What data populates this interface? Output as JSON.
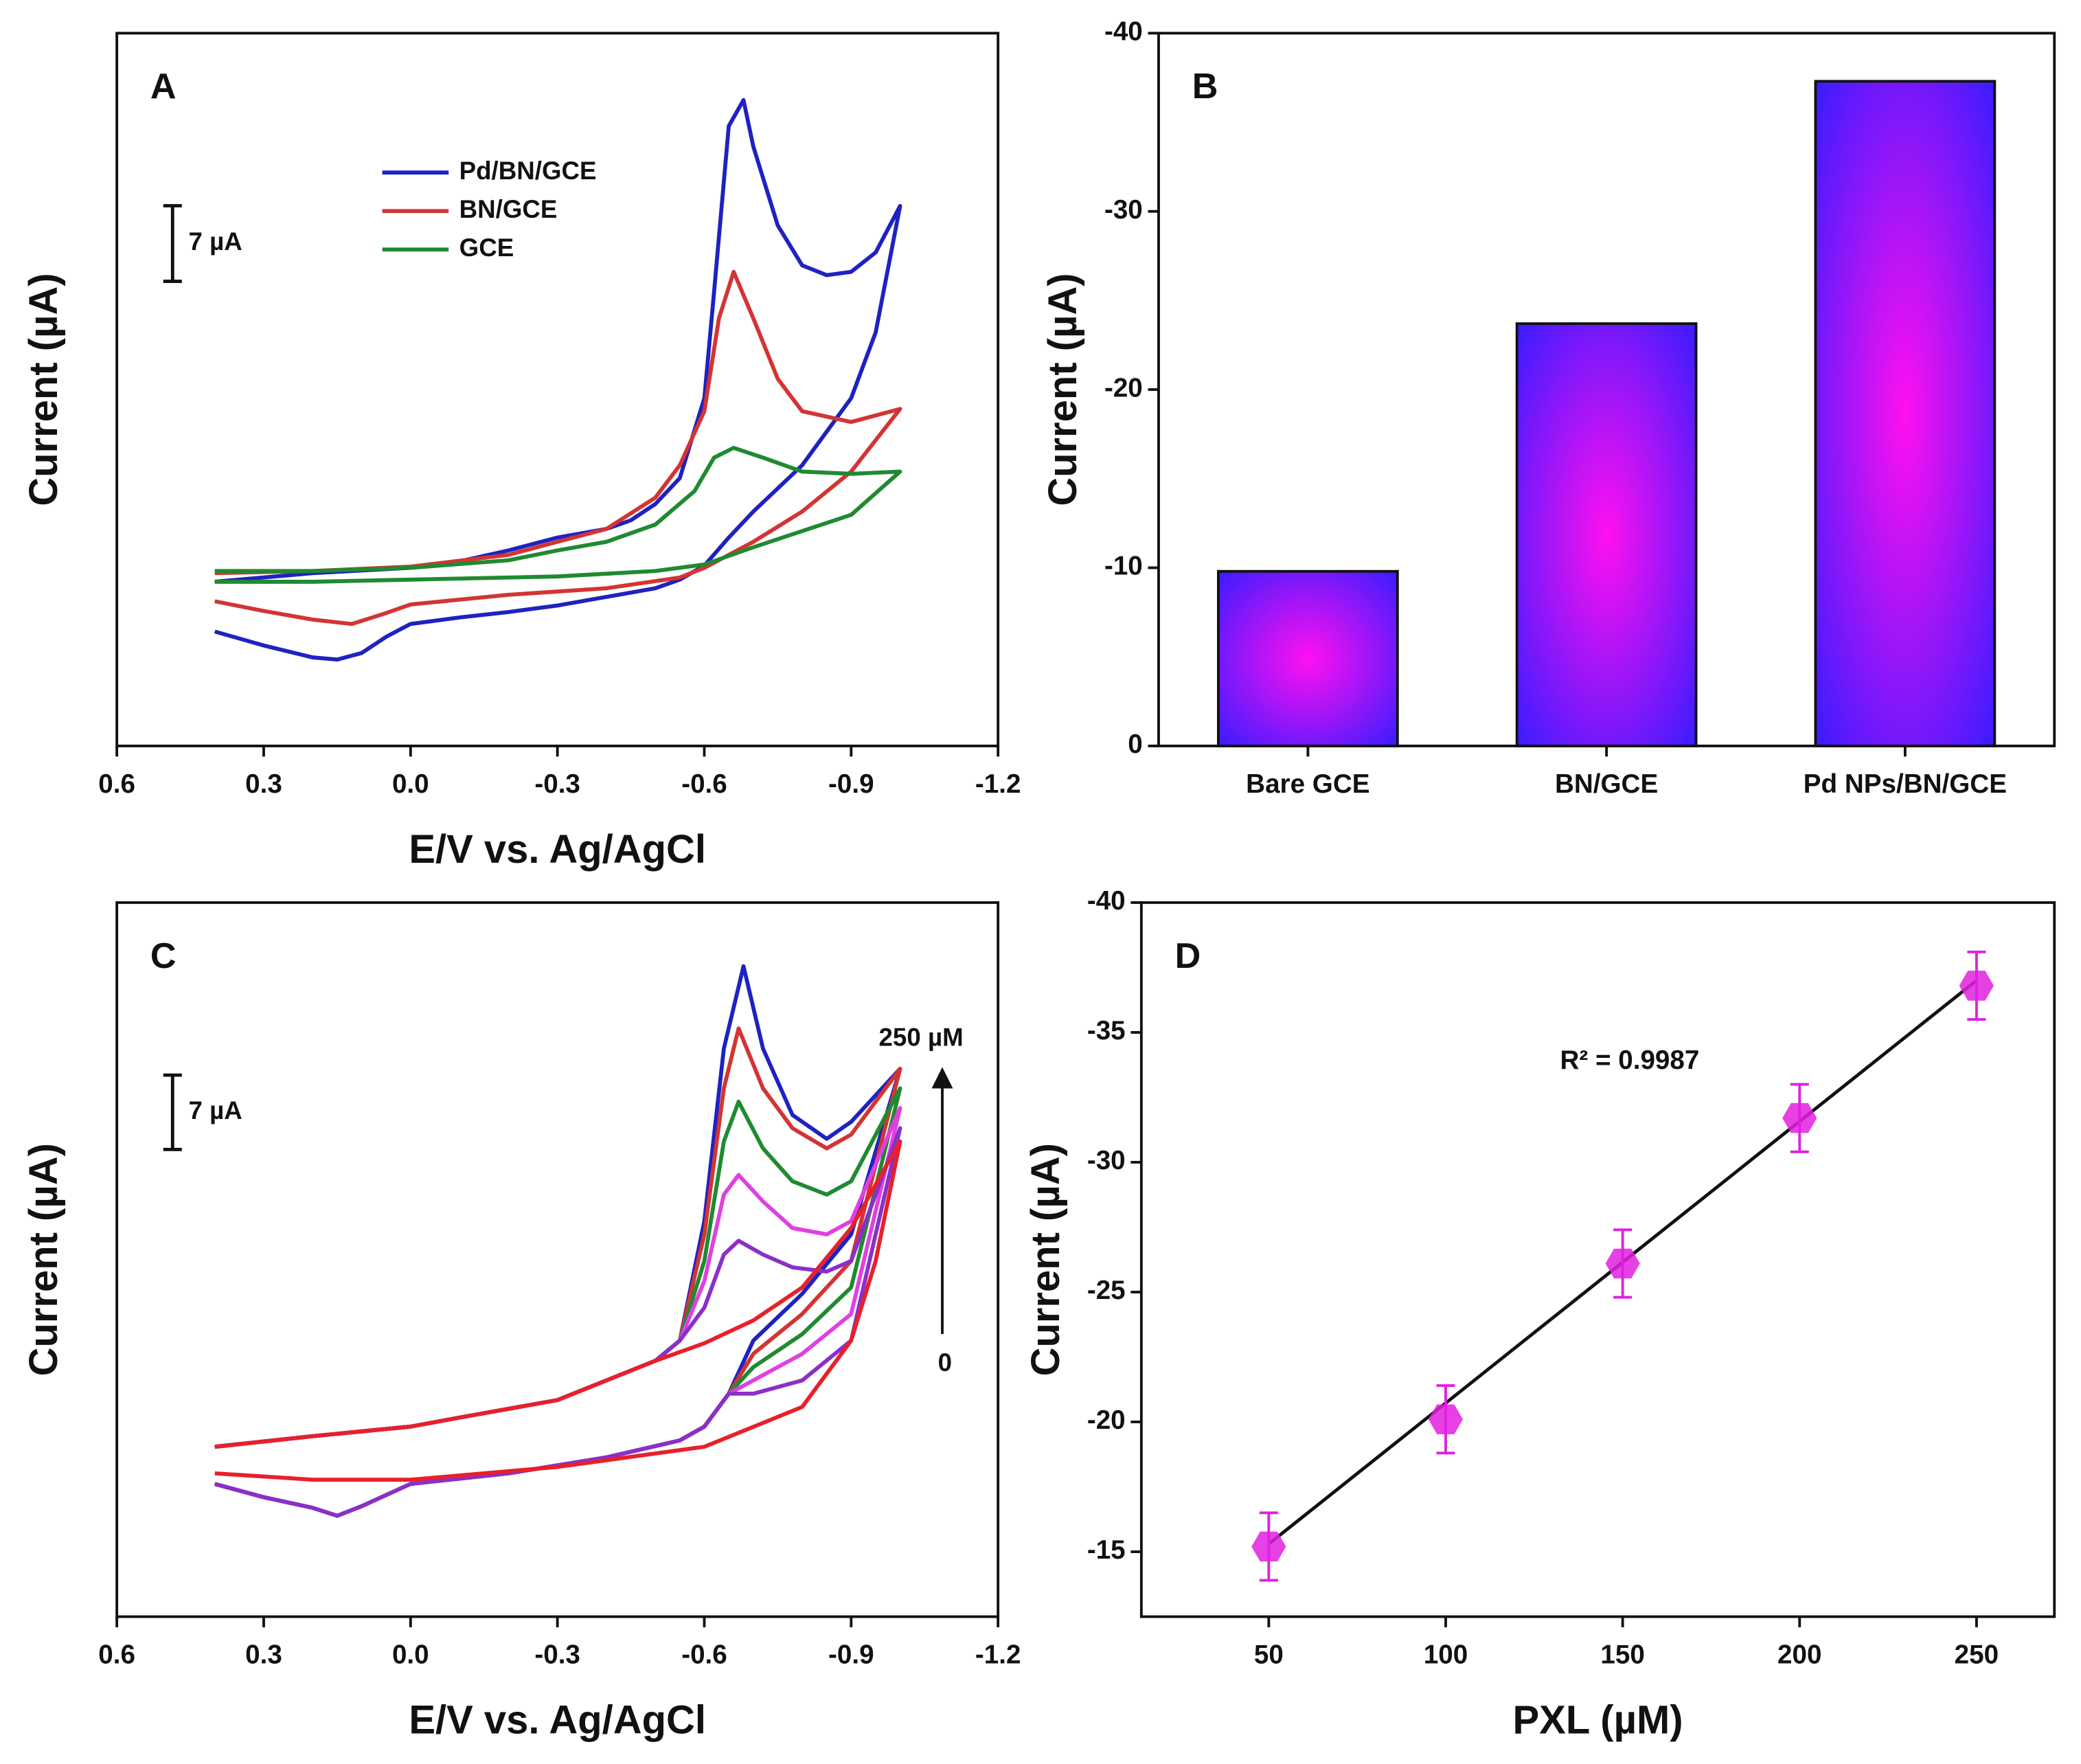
{
  "chart_data": [
    {
      "type": "line",
      "panel": "A",
      "x_label": "E/V vs. Ag/AgCl",
      "y_label": "Current (µA)",
      "xlim": [
        0.6,
        -1.2
      ],
      "xticks": [
        0.6,
        0.3,
        {
          "value": 0,
          "label": "0.0"
        },
        -0.3,
        -0.6,
        -0.9,
        -1.2
      ],
      "ylim": [
        0,
        66
      ],
      "scale_bar": {
        "value": 7,
        "label": "7 µA"
      },
      "series": [
        {
          "name": "Pd/BN/GCE",
          "color": "#1f22c0",
          "x": [
            0.4,
            0.3,
            0.2,
            0.15,
            0.1,
            0.05,
            0,
            -0.1,
            -0.2,
            -0.3,
            -0.4,
            -0.5,
            -0.55,
            -0.6,
            -0.65,
            -0.7,
            -0.8,
            -0.9,
            -0.95,
            -1.0,
            -0.95,
            -0.9,
            -0.85,
            -0.8,
            -0.75,
            -0.7,
            -0.68,
            -0.65,
            -0.62,
            -0.6,
            -0.55,
            -0.5,
            -0.45,
            -0.4,
            -0.3,
            -0.2,
            -0.1,
            0,
            0.2,
            0.4
          ],
          "values": [
            10.6,
            9.3,
            8.2,
            8.0,
            8.6,
            10.1,
            11.3,
            11.9,
            12.4,
            13.0,
            13.8,
            14.6,
            15.4,
            16.7,
            19.3,
            21.7,
            26.0,
            32.2,
            38.3,
            50.0,
            45.7,
            43.9,
            43.6,
            44.5,
            48.2,
            55.5,
            59.8,
            57.4,
            42.0,
            32.2,
            24.8,
            22.4,
            20.9,
            20.1,
            19.3,
            18.1,
            17.1,
            16.5,
            16.0,
            15.2
          ]
        },
        {
          "name": "BN/GCE",
          "color": "#d33434",
          "x": [
            0.4,
            0.3,
            0.2,
            0.12,
            0.05,
            0,
            -0.2,
            -0.4,
            -0.55,
            -0.6,
            -0.7,
            -0.8,
            -0.9,
            -1.0,
            -0.95,
            -0.9,
            -0.8,
            -0.75,
            -0.7,
            -0.66,
            -0.63,
            -0.6,
            -0.55,
            -0.5,
            -0.4,
            -0.3,
            -0.2,
            0,
            0.2,
            0.4
          ],
          "values": [
            13.4,
            12.5,
            11.7,
            11.3,
            12.3,
            13.1,
            14.0,
            14.6,
            15.6,
            16.5,
            18.9,
            21.7,
            25.4,
            31.2,
            30.6,
            30.0,
            31.0,
            34.0,
            39.6,
            43.9,
            39.6,
            31.0,
            26.0,
            23.0,
            20.1,
            18.9,
            17.7,
            16.6,
            16.2,
            16.0
          ]
        },
        {
          "name": "GCE",
          "color": "#1f8a30",
          "x": [
            0.4,
            0.2,
            0,
            -0.3,
            -0.5,
            -0.6,
            -0.7,
            -0.8,
            -0.9,
            -1.0,
            -0.9,
            -0.8,
            -0.72,
            -0.66,
            -0.62,
            -0.58,
            -0.5,
            -0.4,
            -0.3,
            -0.2,
            0,
            0.2,
            0.4
          ],
          "values": [
            15.2,
            15.2,
            15.4,
            15.7,
            16.2,
            16.8,
            18.4,
            19.9,
            21.4,
            25.4,
            25.2,
            25.4,
            26.7,
            27.6,
            26.7,
            23.6,
            20.5,
            18.9,
            18.1,
            17.2,
            16.5,
            16.2,
            16.2
          ]
        }
      ]
    },
    {
      "type": "bar",
      "panel": "B",
      "y_label": "Current (µA)",
      "categories": [
        "Bare GCE",
        "BN/GCE",
        "Pd NPs/BN/GCE"
      ],
      "values": [
        -9.8,
        -23.7,
        -37.3
      ],
      "ylim": [
        0,
        -40
      ],
      "yticks": [
        0,
        -10,
        -20,
        -30,
        -40
      ]
    },
    {
      "type": "line",
      "panel": "C",
      "x_label": "E/V vs. Ag/AgCl",
      "y_label": "Current (µA)",
      "xlim": [
        0.6,
        -1.2
      ],
      "xticks": [
        0.6,
        0.3,
        {
          "value": 0,
          "label": "0.0"
        },
        -0.3,
        -0.6,
        -0.9,
        -1.2
      ],
      "ylim": [
        0,
        67.25
      ],
      "scale_bar": {
        "value": 7,
        "label": "7 µA"
      },
      "annotations": [
        "250 µM",
        "0"
      ],
      "series": [
        {
          "color": "#1f22c0",
          "x": [
            0.4,
            0.3,
            0.2,
            0.15,
            0.1,
            0,
            -0.2,
            -0.4,
            -0.55,
            -0.6,
            -0.65,
            -0.7,
            -0.8,
            -0.9,
            -1.0,
            -0.9,
            -0.85,
            -0.78,
            -0.72,
            -0.68,
            -0.64,
            -0.6,
            -0.55,
            -0.5,
            -0.4,
            -0.3,
            -0.1,
            0,
            0.2,
            0.4
          ],
          "values": [
            12.5,
            11.25,
            10.25,
            9.5,
            10.4,
            12.5,
            13.5,
            15,
            16.6,
            17.9,
            21,
            26,
            30.4,
            36,
            51.6,
            46.6,
            45,
            47.25,
            53.5,
            61.25,
            53.5,
            37.25,
            26,
            24.1,
            22.25,
            20.4,
            18.75,
            17.9,
            17,
            16
          ]
        },
        {
          "color": "#d33434",
          "x": [
            0.4,
            0.3,
            0.2,
            0.15,
            0.1,
            0,
            -0.2,
            -0.4,
            -0.55,
            -0.6,
            -0.65,
            -0.7,
            -0.8,
            -0.9,
            -1.0,
            -0.9,
            -0.85,
            -0.78,
            -0.72,
            -0.67,
            -0.64,
            -0.6,
            -0.55,
            -0.5,
            -0.4,
            -0.3,
            -0.1,
            0,
            0.2,
            0.4
          ],
          "values": [
            12.5,
            11.25,
            10.25,
            9.5,
            10.4,
            12.5,
            13.5,
            15,
            16.6,
            17.9,
            21,
            24.75,
            28.5,
            33.5,
            51.6,
            45.4,
            44.1,
            46,
            49.75,
            55.4,
            49.75,
            36,
            26,
            24.1,
            22.25,
            20.4,
            18.75,
            17.9,
            17,
            16
          ]
        },
        {
          "color": "#1f8a30",
          "x": [
            0.4,
            0.3,
            0.2,
            0.15,
            0.1,
            0,
            -0.2,
            -0.4,
            -0.55,
            -0.6,
            -0.65,
            -0.7,
            -0.8,
            -0.9,
            -1.0,
            -0.9,
            -0.85,
            -0.78,
            -0.72,
            -0.67,
            -0.64,
            -0.6,
            -0.55,
            -0.5,
            -0.4,
            -0.3,
            -0.1,
            0,
            0.2,
            0.4
          ],
          "values": [
            12.5,
            11.25,
            10.25,
            9.5,
            10.4,
            12.5,
            13.5,
            15,
            16.6,
            17.9,
            21,
            23.5,
            26.6,
            31,
            49.75,
            41,
            39.75,
            41,
            44.1,
            48.5,
            44.75,
            33.5,
            26,
            24.1,
            22.25,
            20.4,
            18.75,
            17.9,
            17,
            16
          ]
        },
        {
          "color": "#e040e0",
          "x": [
            0.4,
            0.3,
            0.2,
            0.15,
            0.1,
            0,
            -0.2,
            -0.4,
            -0.55,
            -0.6,
            -0.65,
            -0.7,
            -0.8,
            -0.9,
            -1.0,
            -0.9,
            -0.85,
            -0.78,
            -0.72,
            -0.67,
            -0.64,
            -0.6,
            -0.55,
            -0.5,
            -0.4,
            -0.3,
            -0.1,
            0,
            0.2,
            0.4
          ],
          "values": [
            12.5,
            11.25,
            10.25,
            9.5,
            10.4,
            12.5,
            13.5,
            15,
            16.6,
            17.9,
            21,
            22.25,
            24.75,
            28.5,
            47.9,
            37.25,
            36,
            36.6,
            39.1,
            41.6,
            39.75,
            31.6,
            26,
            24.1,
            22.25,
            20.4,
            18.75,
            17.9,
            17,
            16
          ]
        },
        {
          "color": "#8a30c8",
          "x": [
            0.4,
            0.3,
            0.2,
            0.15,
            0.1,
            0,
            -0.2,
            -0.4,
            -0.55,
            -0.6,
            -0.65,
            -0.7,
            -0.8,
            -0.9,
            -1.0,
            -0.9,
            -0.85,
            -0.78,
            -0.72,
            -0.67,
            -0.64,
            -0.6,
            -0.55,
            -0.5,
            -0.4,
            -0.3,
            -0.1,
            0,
            0.2,
            0.4
          ],
          "values": [
            12.5,
            11.25,
            10.25,
            9.5,
            10.4,
            12.5,
            13.5,
            15,
            16.6,
            17.9,
            21,
            21,
            22.25,
            26,
            46,
            33.5,
            32.5,
            32.9,
            34.1,
            35.4,
            34.1,
            29.1,
            26,
            24.1,
            22.25,
            20.4,
            18.75,
            17.9,
            17,
            16
          ]
        },
        {
          "color": "#e8202a",
          "x": [
            0.4,
            0.2,
            0,
            -0.3,
            -0.6,
            -0.8,
            -0.9,
            -0.95,
            -1.0,
            -0.9,
            -0.8,
            -0.7,
            -0.6,
            -0.5,
            -0.4,
            -0.3,
            -0.1,
            0,
            0.2,
            0.4
          ],
          "values": [
            13.5,
            12.9,
            12.9,
            14.1,
            16,
            19.75,
            26,
            33.5,
            44.75,
            36.6,
            31,
            27.9,
            25.75,
            24.1,
            22.25,
            20.4,
            18.75,
            17.9,
            17,
            16
          ]
        }
      ]
    },
    {
      "type": "scatter",
      "panel": "D",
      "x_label": "PXL (µM)",
      "y_label": "Current (µA)",
      "annotation": "R² = 0.9987",
      "color": "#e020e0",
      "line_color": "#111111",
      "x": [
        50,
        100,
        150,
        200,
        250
      ],
      "values": [
        -15.2,
        -20.1,
        -26.1,
        -31.7,
        -36.8
      ],
      "errors": [
        1.3,
        1.3,
        1.3,
        1.3,
        1.3
      ],
      "fit": {
        "x": [
          50,
          250
        ],
        "y": [
          -15.3,
          -37.0
        ]
      },
      "xlim": [
        14,
        272
      ],
      "xticks": [
        50,
        100,
        150,
        200,
        250
      ],
      "ylim": [
        -12.5,
        -40
      ],
      "yticks": [
        -15,
        -20,
        -25,
        -30,
        -35,
        -40
      ]
    }
  ]
}
